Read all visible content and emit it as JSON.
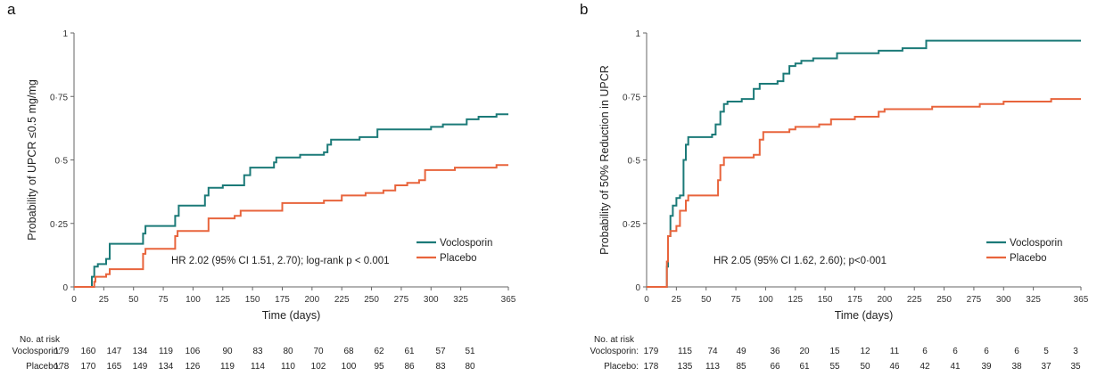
{
  "chart_data": [
    {
      "panel_label": "a",
      "type": "line",
      "step": true,
      "xlabel": "Time (days)",
      "ylabel": "Probability of UPCR ≤0.5 mg/mg",
      "xlim": [
        0,
        365
      ],
      "ylim": [
        0,
        1
      ],
      "x_ticks": [
        0,
        25,
        50,
        75,
        100,
        125,
        150,
        175,
        200,
        225,
        250,
        275,
        300,
        325,
        365
      ],
      "y_ticks": [
        0,
        0.25,
        0.5,
        0.75,
        1
      ],
      "y_tick_labels": [
        "0",
        "0·25",
        "0·5",
        "0·75",
        "1"
      ],
      "legend_position": "bottom-right",
      "annotation": "HR 2.02 (95% CI 1.51, 2.70); log-rank p < 0.001",
      "series": [
        {
          "name": "Voclosporin",
          "color": "#1b7a78",
          "x": [
            0,
            14,
            15,
            17,
            20,
            27,
            30,
            55,
            58,
            60,
            83,
            85,
            88,
            108,
            110,
            113,
            125,
            140,
            143,
            148,
            150,
            165,
            168,
            170,
            190,
            210,
            213,
            216,
            240,
            253,
            255,
            280,
            300,
            310,
            330,
            340,
            355,
            365
          ],
          "y": [
            0,
            0,
            0.04,
            0.08,
            0.09,
            0.11,
            0.17,
            0.17,
            0.21,
            0.24,
            0.24,
            0.28,
            0.32,
            0.32,
            0.36,
            0.39,
            0.4,
            0.4,
            0.44,
            0.47,
            0.47,
            0.47,
            0.49,
            0.51,
            0.52,
            0.53,
            0.56,
            0.58,
            0.59,
            0.59,
            0.62,
            0.62,
            0.63,
            0.64,
            0.66,
            0.67,
            0.68,
            0.68
          ]
        },
        {
          "name": "Placebo",
          "color": "#e8643c",
          "x": [
            0,
            14,
            17,
            18,
            27,
            30,
            55,
            58,
            60,
            70,
            80,
            85,
            87,
            105,
            113,
            118,
            125,
            135,
            140,
            150,
            170,
            175,
            190,
            200,
            210,
            225,
            245,
            260,
            270,
            280,
            290,
            295,
            310,
            320,
            340,
            355,
            365
          ],
          "y": [
            0,
            0,
            0.02,
            0.04,
            0.05,
            0.07,
            0.07,
            0.13,
            0.15,
            0.15,
            0.15,
            0.2,
            0.22,
            0.22,
            0.27,
            0.27,
            0.27,
            0.28,
            0.3,
            0.3,
            0.3,
            0.33,
            0.33,
            0.33,
            0.34,
            0.36,
            0.37,
            0.38,
            0.4,
            0.41,
            0.42,
            0.46,
            0.46,
            0.47,
            0.47,
            0.48,
            0.48
          ]
        }
      ],
      "risk_table": {
        "header": "No. at risk",
        "rows": [
          {
            "label": "Voclosporin:",
            "values": [
              "179",
              "160",
              "147",
              "134",
              "119",
              "106",
              "90",
              "83",
              "80",
              "70",
              "68",
              "62",
              "61",
              "57",
              "51"
            ]
          },
          {
            "label": "Placebo:",
            "values": [
              "178",
              "170",
              "165",
              "149",
              "134",
              "126",
              "119",
              "114",
              "110",
              "102",
              "100",
              "95",
              "86",
              "83",
              "80"
            ]
          }
        ]
      }
    },
    {
      "panel_label": "b",
      "type": "line",
      "step": true,
      "xlabel": "Time (days)",
      "ylabel": "Probability of 50% Reduction in UPCR",
      "xlim": [
        0,
        365
      ],
      "ylim": [
        0,
        1
      ],
      "x_ticks": [
        0,
        25,
        50,
        75,
        100,
        125,
        150,
        175,
        200,
        225,
        250,
        275,
        300,
        325,
        365
      ],
      "y_ticks": [
        0,
        0.25,
        0.5,
        0.75,
        1
      ],
      "y_tick_labels": [
        "0",
        "0·25",
        "0·5",
        "0·75",
        "1"
      ],
      "legend_position": "bottom-right",
      "annotation": "HR 2.05 (95% CI 1.62, 2.60); p<0·001",
      "series": [
        {
          "name": "Voclosporin",
          "color": "#1b7a78",
          "x": [
            0,
            15,
            17,
            18,
            20,
            22,
            25,
            28,
            31,
            33,
            35,
            45,
            55,
            58,
            62,
            65,
            68,
            80,
            90,
            95,
            100,
            110,
            115,
            120,
            125,
            130,
            140,
            160,
            175,
            195,
            215,
            230,
            235,
            365
          ],
          "y": [
            0,
            0,
            0.08,
            0.2,
            0.28,
            0.32,
            0.35,
            0.36,
            0.5,
            0.56,
            0.59,
            0.59,
            0.6,
            0.64,
            0.69,
            0.72,
            0.73,
            0.74,
            0.78,
            0.8,
            0.8,
            0.81,
            0.84,
            0.87,
            0.88,
            0.89,
            0.9,
            0.92,
            0.92,
            0.93,
            0.94,
            0.94,
            0.97,
            0.97
          ],
          "end_x": 365
        },
        {
          "name": "Placebo",
          "color": "#e8643c",
          "x": [
            0,
            15,
            17,
            18,
            20,
            25,
            28,
            33,
            35,
            55,
            60,
            62,
            65,
            70,
            90,
            95,
            98,
            105,
            120,
            125,
            130,
            145,
            155,
            175,
            195,
            200,
            215,
            240,
            265,
            280,
            300,
            310,
            320,
            340,
            365
          ],
          "y": [
            0,
            0,
            0.1,
            0.2,
            0.22,
            0.24,
            0.3,
            0.34,
            0.36,
            0.36,
            0.42,
            0.48,
            0.51,
            0.51,
            0.52,
            0.58,
            0.61,
            0.61,
            0.62,
            0.63,
            0.63,
            0.64,
            0.66,
            0.67,
            0.69,
            0.7,
            0.7,
            0.71,
            0.71,
            0.72,
            0.73,
            0.73,
            0.73,
            0.74,
            0.74
          ]
        }
      ],
      "risk_table": {
        "header": "No. at risk",
        "rows": [
          {
            "label": "Voclosporin:",
            "values": [
              "179",
              "115",
              "74",
              "49",
              "36",
              "20",
              "15",
              "12",
              "11",
              "6",
              "6",
              "6",
              "6",
              "5",
              "3"
            ]
          },
          {
            "label": "Placebo:",
            "values": [
              "178",
              "135",
              "113",
              "85",
              "66",
              "61",
              "55",
              "50",
              "46",
              "42",
              "41",
              "39",
              "38",
              "37",
              "35"
            ]
          }
        ]
      }
    }
  ]
}
